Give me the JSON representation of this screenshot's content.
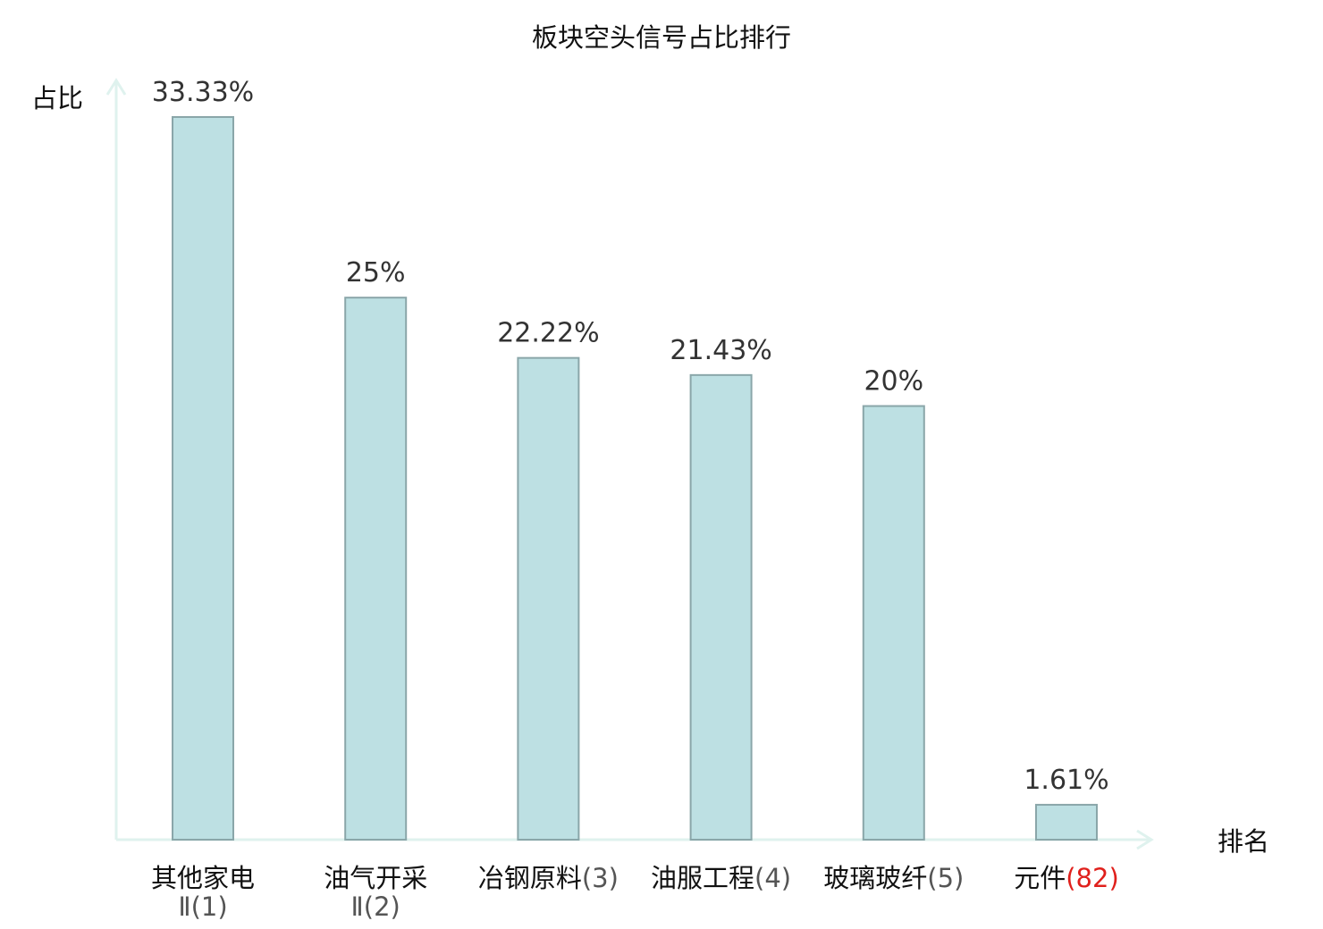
{
  "chart_data": {
    "type": "bar",
    "title": "板块空头信号占比排行",
    "ylabel": "占比",
    "xlabel": "排名",
    "ylim": [
      0,
      35
    ],
    "grid": false,
    "legend": "none",
    "categories": [
      {
        "name": "其他家电",
        "rank": "Ⅱ(1)",
        "highlight": false
      },
      {
        "name": "油气开采",
        "rank": "Ⅱ(2)",
        "highlight": false
      },
      {
        "name": "冶钢原料",
        "rank": "(3)",
        "highlight": false
      },
      {
        "name": "油服工程",
        "rank": "(4)",
        "highlight": false
      },
      {
        "name": "玻璃玻纤",
        "rank": "(5)",
        "highlight": false
      },
      {
        "name": "元件",
        "rank": "(82)",
        "highlight": true
      }
    ],
    "values": [
      33.33,
      25,
      22.22,
      21.43,
      20,
      1.61
    ],
    "labels": [
      "33.33%",
      "25%",
      "22.22%",
      "21.43%",
      "20%",
      "1.61%"
    ],
    "colors": {
      "bar_fill": "#bde0e3",
      "bar_stroke": "#8aa6a9",
      "axis": "#dff2ee",
      "highlight_text": "#e0201c",
      "text": "#111111",
      "label_text": "#333333"
    }
  }
}
